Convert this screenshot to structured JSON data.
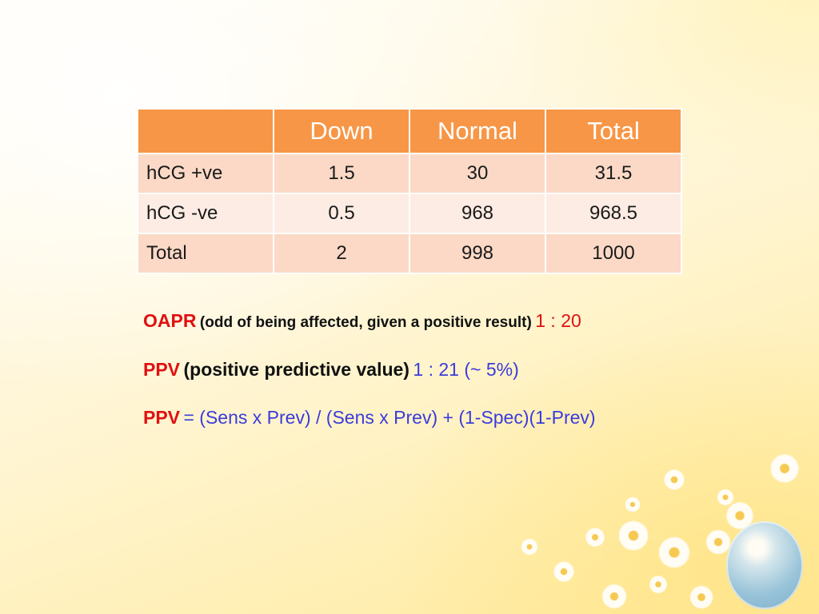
{
  "table": {
    "headers": [
      "",
      "Down",
      "Normal",
      "Total"
    ],
    "rows": [
      {
        "label": "hCG +ve",
        "down": "1.5",
        "normal": "30",
        "total": "31.5"
      },
      {
        "label": "hCG -ve",
        "down": "0.5",
        "normal": "968",
        "total": "968.5"
      },
      {
        "label": "Total",
        "down": "2",
        "normal": "998",
        "total": "1000"
      }
    ]
  },
  "oapr": {
    "key": "OAPR",
    "description": "(odd of being affected, given a positive result)",
    "value": "1 : 20"
  },
  "ppv": {
    "key": "PPV",
    "description": "(positive predictive value)",
    "value": "1 : 21 (~ 5%)"
  },
  "ppv_formula": {
    "key": "PPV",
    "expression": "= (Sens x Prev) / (Sens x Prev) + (1-Spec)(1-Prev)"
  },
  "colors": {
    "header_bg": "#f79646",
    "row_odd": "#fbd9c6",
    "row_even": "#fdece3",
    "key_red": "#e01010",
    "value_blue": "#3b3bdc"
  }
}
